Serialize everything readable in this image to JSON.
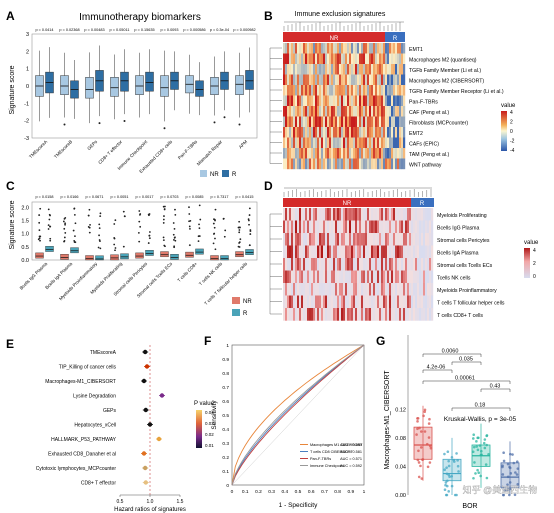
{
  "panelA": {
    "letter": "A",
    "title": "Immunotherapy biomarkers",
    "ylabel": "Signature score",
    "pvalues": [
      "p = 0.0414",
      "p = 0.02368",
      "p = 0.00483",
      "p = 0.05011",
      "p = 0.15635",
      "p = 0.0093",
      "p = 0.000586",
      "p = 0.3e-04",
      "p = 0.000982"
    ],
    "categories": [
      "TMEscoreA",
      "TMEscoreB",
      "GEPs",
      "CD8+ T effector",
      "Immune Checkpoint",
      "Exhausted CD8+ cells",
      "Pan-F-TBRs",
      "Mismatch Repair",
      "APM"
    ],
    "yticks": [
      "3",
      "2",
      "1",
      "0",
      "-1",
      "-2",
      "-3"
    ],
    "legend": [
      "NR",
      "R"
    ],
    "colors": {
      "NR": "#a8c8e2",
      "R": "#2e6ea3"
    },
    "chart_data": {
      "type": "box",
      "ylim": [
        -3,
        3
      ],
      "series": [
        {
          "name": "NR",
          "box": [
            [
              -0.6,
              0.0,
              0.6
            ],
            [
              -0.5,
              0.0,
              0.6
            ],
            [
              -0.7,
              -0.2,
              0.5
            ],
            [
              -0.6,
              -0.1,
              0.5
            ],
            [
              -0.5,
              0.0,
              0.6
            ],
            [
              -0.6,
              -0.1,
              0.6
            ],
            [
              -0.4,
              0.1,
              0.6
            ],
            [
              -0.5,
              0.0,
              0.5
            ],
            [
              -0.5,
              0.1,
              0.6
            ]
          ]
        },
        {
          "name": "R",
          "box": [
            [
              -0.4,
              0.2,
              0.8
            ],
            [
              -0.7,
              -0.2,
              0.3
            ],
            [
              -0.3,
              0.3,
              0.9
            ],
            [
              -0.3,
              0.3,
              0.8
            ],
            [
              -0.3,
              0.2,
              0.8
            ],
            [
              -0.2,
              0.3,
              0.8
            ],
            [
              -0.6,
              -0.2,
              0.3
            ],
            [
              -0.2,
              0.3,
              0.8
            ],
            [
              -0.2,
              0.3,
              0.9
            ]
          ]
        }
      ]
    }
  },
  "panelB": {
    "letter": "B",
    "title": "Immune exclusion signatures",
    "groups": [
      "NR",
      "R"
    ],
    "rows": [
      "EMT1",
      "Macrophages M2 (quantiseq)",
      "TGFb Family Member (Li et al.)",
      "Macrophages M2 (CIBERSORT)",
      "TGFb Family Member Receptor (Li et al.)",
      "Pan-F-TBRs",
      "CAF (Peng et al.)",
      "Fibroblasts (MCPcounter)",
      "EMT2",
      "CAFs (EPIC)",
      "TAM (Peng et al.)",
      "WNT pathway"
    ],
    "legend_title": "value",
    "legend_ticks": [
      "4",
      "2",
      "0",
      "-2",
      "-4"
    ]
  },
  "panelC": {
    "letter": "C",
    "ylabel": "Signature score",
    "pvalues": [
      "p = 0.0158",
      "p = 0.0166",
      "p = 0.0671",
      "p = 0.0051",
      "p = 0.0017",
      "p = 0.0703",
      "p = 0.0085",
      "p = 0.7317",
      "p = 0.0415"
    ],
    "categories": [
      "Bcells IgG Plasma",
      "Bcells IgA Plasma",
      "Myeloids Proinflammatory",
      "Myeloids Proliferating",
      "Stromal cells Pericytes",
      "Stromal cells Tcells ECs",
      "T cells CD8+",
      "T cells NK cells",
      "T cells T follicular helper cells"
    ],
    "yticks": [
      "2.0",
      "1.5",
      "1.0",
      "0.5",
      "0.0"
    ],
    "legend": [
      "NR",
      "R"
    ],
    "colors": {
      "NR": "#e07a6b",
      "R": "#4aa3b8"
    }
  },
  "panelD": {
    "letter": "D",
    "groups": [
      "NR",
      "R"
    ],
    "rows": [
      "Myeloids Proliferating",
      "Bcells IgG Plasma",
      "Stromal cells Pericytes",
      "Bcells IgA Plasma",
      "Stromal cells Tcells ECs",
      "Tcells NK cells",
      "Myeloids Proinflammatory",
      "T cells T follicular helper cells",
      "T cells CD8+ T cells"
    ],
    "legend_title": "value",
    "legend_ticks": [
      "4",
      "2",
      "0"
    ]
  },
  "panelE": {
    "letter": "E",
    "rows": [
      "TMEscoreA",
      "TIP_Killing of cancer cells",
      "Macrophages-M1_CIBERSORT",
      "Lysine Degradation",
      "GEPs",
      "Hepatocytes_xCell",
      "HALLMARK_P53_PATHWAY",
      "Exhausted CD8_Danaher et al",
      "Cytotoxic lymphocytes_MCPcounter",
      "CD8+ T effector"
    ],
    "xlabel": "Hazard ratios of signatures",
    "xticks": [
      "0.5",
      "1.0",
      "1.5"
    ],
    "legend_title": "P value",
    "legend_ticks": [
      "0.04",
      "0.03",
      "0.02",
      "0.01"
    ],
    "hr": [
      0.92,
      0.95,
      0.9,
      1.2,
      0.93,
      1.0,
      1.15,
      0.9,
      0.92,
      0.93
    ],
    "colors": [
      "#111111",
      "#cc3300",
      "#111111",
      "#7a2a8a",
      "#111111",
      "#111111",
      "#e8a33c",
      "#e07020",
      "#c9a060",
      "#e6c080"
    ]
  },
  "panelF": {
    "letter": "F",
    "xlabel": "1 - Specificity",
    "ylabel": "Sensitivity",
    "xticks": [
      "0",
      "0.1",
      "0.2",
      "0.3",
      "0.4",
      "0.5",
      "0.6",
      "0.7",
      "0.8",
      "0.9",
      "1"
    ],
    "yticks": [
      "1",
      "0.9",
      "0.8",
      "0.7",
      "0.6",
      "0.5",
      "0.4",
      "0.3",
      "0.2",
      "0.1",
      "0"
    ],
    "legend": [
      {
        "name": "Macrophages M1 CIBERSORT",
        "auc": "AUC = 0.660",
        "color": "#e8863a"
      },
      {
        "name": "T cells CD8 CIBERSORT",
        "auc": "AUC = 0.581",
        "color": "#4a7fc0"
      },
      {
        "name": "Pan-F-TBRs",
        "auc": "AUC = 0.571",
        "color": "#c04040"
      },
      {
        "name": "Immune Checkpoint",
        "auc": "AUC = 0.592",
        "color": "#999999"
      }
    ]
  },
  "panelG": {
    "letter": "G",
    "ylabel": "Macrophages-M1_CIBERSORT",
    "xlabel": "BOR",
    "yticks": [
      "0.12",
      "0.08",
      "0.04",
      "0.00"
    ],
    "pairs": [
      "0.0060",
      "0.035",
      "4.2e-06",
      "0.00061",
      "0.43",
      "0.18"
    ],
    "kruskal": "Kruskal-Wallis, p = 3e-05",
    "colors": [
      "#d9534f",
      "#46a8c4",
      "#2ab5a0",
      "#4f6fa8"
    ],
    "watermark": "知乎 @美迪西生物"
  }
}
